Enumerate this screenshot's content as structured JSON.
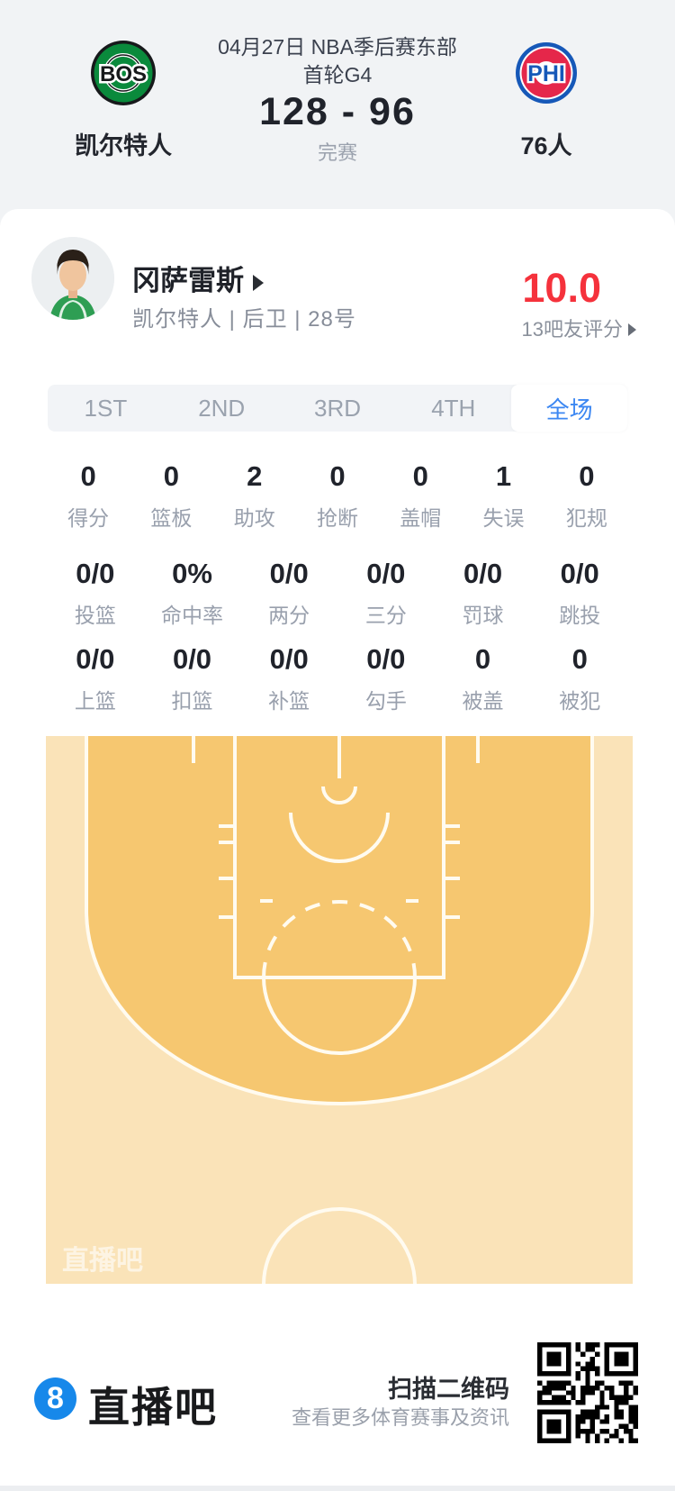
{
  "match": {
    "date_line1": "04月27日 NBA季后赛东部",
    "date_line2": "首轮G4",
    "score": "128 - 96",
    "status": "完赛",
    "home": {
      "abbr": "BOS",
      "name": "凯尔特人"
    },
    "away": {
      "abbr": "PHI",
      "name": "76人"
    }
  },
  "player": {
    "name": "冈萨雷斯",
    "info": "凯尔特人 | 后卫 | 28号",
    "rating": "10.0",
    "rating_note": "13吧友评分"
  },
  "tabs": [
    {
      "label": "1ST",
      "active": false
    },
    {
      "label": "2ND",
      "active": false
    },
    {
      "label": "3RD",
      "active": false
    },
    {
      "label": "4TH",
      "active": false
    },
    {
      "label": "全场",
      "active": true
    }
  ],
  "stats": {
    "row1": [
      {
        "value": "0",
        "label": "得分"
      },
      {
        "value": "0",
        "label": "篮板"
      },
      {
        "value": "2",
        "label": "助攻"
      },
      {
        "value": "0",
        "label": "抢断"
      },
      {
        "value": "0",
        "label": "盖帽"
      },
      {
        "value": "1",
        "label": "失误"
      },
      {
        "value": "0",
        "label": "犯规"
      }
    ],
    "row2": [
      {
        "value": "0/0",
        "label": "投篮"
      },
      {
        "value": "0%",
        "label": "命中率"
      },
      {
        "value": "0/0",
        "label": "两分"
      },
      {
        "value": "0/0",
        "label": "三分"
      },
      {
        "value": "0/0",
        "label": "罚球"
      },
      {
        "value": "0/0",
        "label": "跳投"
      }
    ],
    "row3": [
      {
        "value": "0/0",
        "label": "上篮"
      },
      {
        "value": "0/0",
        "label": "扣篮"
      },
      {
        "value": "0/0",
        "label": "补篮"
      },
      {
        "value": "0/0",
        "label": "勾手"
      },
      {
        "value": "0",
        "label": "被盖"
      },
      {
        "value": "0",
        "label": "被犯"
      }
    ]
  },
  "court": {
    "watermark": "直播吧"
  },
  "footer": {
    "logo_char": "8",
    "brand": "直播吧",
    "qr_title": "扫描二维码",
    "qr_subtitle": "查看更多体育赛事及资讯"
  },
  "colors": {
    "accent_blue": "#3c87f2",
    "rating_red": "#f5323c",
    "header_bg": "#f1f3f5",
    "court_outer": "#fae3b8",
    "court_inner": "#f6c770",
    "court_line": "#fffbf0",
    "celtics_green": "#0a8a3c",
    "sixers_red": "#e5274a",
    "sixers_blue": "#1658b8",
    "brand_blue": "#1788ea"
  }
}
